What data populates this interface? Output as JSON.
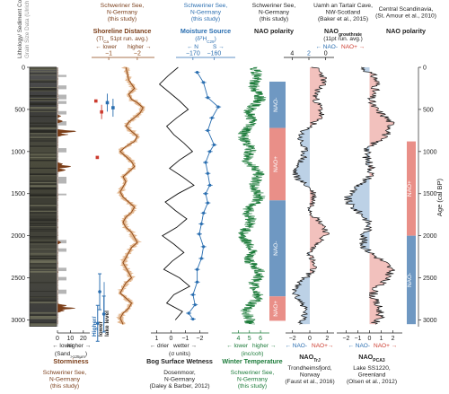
{
  "chart_data": {
    "type": "line",
    "y_axis": {
      "label": "Age (cal BP)",
      "ticks": [
        0,
        500,
        1000,
        1500,
        2000,
        2500,
        3000
      ],
      "lim": [
        0,
        3080
      ],
      "inverted": true
    },
    "panels": [
      {
        "id": "lithology",
        "header": "Lithology/ Sediment Color",
        "color": "#444444"
      },
      {
        "id": "grain_size",
        "header": "Grain Size Data (Ulrich et al., 2007)",
        "color": "#999999"
      },
      {
        "id": "storminess",
        "xlabel": "Storminess",
        "sublabel": "(Sand",
        "sub_index": ">125μm",
        "sub_suffix": ")",
        "dir_low": "← lower",
        "dir_high": "higher →",
        "xticks": [
          0,
          10,
          20
        ],
        "color": "#7a3d18",
        "x_range": [
          0,
          25
        ],
        "peaks": [
          [
            580,
            3
          ],
          [
            640,
            5
          ],
          [
            760,
            20
          ],
          [
            800,
            9
          ],
          [
            1150,
            6
          ],
          [
            1180,
            14
          ],
          [
            1220,
            8
          ],
          [
            2080,
            4
          ],
          [
            2830,
            9
          ],
          [
            2860,
            16
          ],
          [
            2890,
            7
          ]
        ],
        "credit": [
          "Schweriner See,",
          "N-Germany",
          "(this study)"
        ],
        "credit_color": "#7a3d18"
      },
      {
        "id": "lake_level",
        "xlabel": "lake level",
        "dir_low": "Higher/",
        "dir_high": "lower",
        "color": "#2a6eb0",
        "points": [
          [
            2665,
            0.35
          ],
          [
            2930,
            0.55
          ],
          [
            3040,
            0.25
          ]
        ]
      },
      {
        "id": "shoreline",
        "header": [
          "Schweriner See,",
          "N-Germany",
          "(this study)"
        ],
        "title": "Shoreline Distance",
        "subtitle": "(TI",
        "sub_index": "Ca",
        "sub_suffix": " 51pt run. avg.)",
        "dir_low": "← lower",
        "dir_high": "higher →",
        "xticks": [
          -1,
          -2
        ],
        "x_range": [
          -0.4,
          -2.6
        ],
        "color": "#8b4513",
        "series": {
          "age": [
            0,
            150,
            250,
            320,
            380,
            420,
            480,
            540,
            600,
            650,
            700,
            760,
            820,
            880,
            940,
            1000,
            1060,
            1120,
            1180,
            1240,
            1300,
            1360,
            1420,
            1480,
            1540,
            1600,
            1660,
            1720,
            1780,
            1840,
            1900,
            1960,
            2020,
            2080,
            2140,
            2200,
            2260,
            2320,
            2380,
            2440,
            2500,
            2560,
            2620,
            2680,
            2740,
            2800,
            2860,
            2920,
            2980,
            3050
          ],
          "value": [
            -1.6,
            -1.7,
            -1.9,
            -1.7,
            -1.8,
            -2.0,
            -2.2,
            -2.1,
            -1.9,
            -1.7,
            -1.6,
            -1.8,
            -2.0,
            -1.9,
            -1.6,
            -1.4,
            -1.6,
            -1.8,
            -1.9,
            -1.7,
            -1.5,
            -1.6,
            -1.5,
            -1.4,
            -1.5,
            -1.7,
            -1.9,
            -1.8,
            -1.6,
            -1.5,
            -1.6,
            -1.8,
            -1.9,
            -2.0,
            -1.8,
            -1.7,
            -1.6,
            -1.5,
            -1.6,
            -1.7,
            -1.8,
            -1.6,
            -1.5,
            -1.4,
            -1.6,
            -1.8,
            -1.7,
            -1.5,
            -1.4,
            -1.5
          ]
        }
      },
      {
        "id": "red_markers",
        "color": "#cc3b2e",
        "points": [
          [
            400,
            -0.55
          ],
          [
            530,
            -0.75
          ],
          [
            1070,
            -0.6
          ]
        ]
      },
      {
        "id": "blue_markers",
        "color": "#2a6eb0",
        "points": [
          [
            420,
            -0.95
          ],
          [
            480,
            -1.15
          ]
        ]
      },
      {
        "id": "bog",
        "xlabel": "Bog Surface Wetness",
        "sublabel": "(σ units)",
        "dir_low": "← drier",
        "dir_high": "wetter →",
        "xticks": [
          1,
          0,
          -1,
          -2
        ],
        "x_range": [
          1.4,
          -2.6
        ],
        "color": "#111111",
        "credit": [
          "Dosenmoor,",
          "N-Germany",
          "(Daley & Barber, 2012)"
        ],
        "series": {
          "age": [
            0,
            100,
            200,
            300,
            400,
            500,
            600,
            700,
            800,
            900,
            1000,
            1100,
            1200,
            1300,
            1400,
            1500,
            1600,
            1700,
            1800,
            1900,
            2000,
            2100,
            2200,
            2300,
            2400,
            2500,
            2600,
            2700,
            2800,
            2900,
            3000
          ],
          "value": [
            -0.5,
            0.2,
            0.8,
            0.1,
            -0.6,
            -1.2,
            -0.4,
            0.3,
            -0.2,
            -0.9,
            -1.5,
            -0.6,
            0.1,
            -0.8,
            -1.6,
            -0.5,
            0.4,
            -0.3,
            -1.1,
            -0.4,
            0.6,
            -0.2,
            -0.9,
            -0.1,
            0.5,
            -0.6,
            -1.3,
            -0.2,
            0.3,
            -0.8,
            -0.3
          ]
        }
      },
      {
        "id": "moisture",
        "header": [
          "Schweriner See,",
          "N-Germany",
          "(this study)"
        ],
        "title": "Moisture Source",
        "subtitle": "(δ",
        "sub_sup": "2",
        "sub_mid": "H",
        "sub_index": "C29",
        "sub_suffix": ")",
        "dir_low": "← N",
        "dir_high": "S →",
        "xticks": [
          -170,
          -160
        ],
        "x_range": [
          -178,
          -150
        ],
        "color": "#2a6eb0",
        "series": {
          "age": [
            60,
            180,
            360,
            470,
            600,
            750,
            920,
            1000,
            1130,
            1260,
            1400,
            1500,
            1610,
            1730,
            1860,
            1980,
            2130,
            2270,
            2400,
            2550,
            2700,
            2820,
            2920,
            2990
          ],
          "value": [
            -168,
            -165,
            -163,
            -158,
            -161,
            -163,
            -160,
            -162,
            -164,
            -163,
            -162,
            -164,
            -163,
            -165,
            -166,
            -167,
            -165,
            -166,
            -168,
            -168,
            -170,
            -169,
            -172,
            -170
          ]
        }
      },
      {
        "id": "winter_temp",
        "xlabel": "Winter Temperature",
        "sublabel": "(inc/coh)",
        "dir_low": "← lower",
        "dir_high": "higher →",
        "xticks": [
          4,
          5,
          6
        ],
        "x_range": [
          3.4,
          6.8
        ],
        "color": "#1a7a38",
        "credit": [
          "Schweriner See,",
          "N-Germany",
          "(this study)"
        ],
        "credit_color": "#1a7a38",
        "mean": 5.2
      },
      {
        "id": "nao_polarity_schwerin",
        "header": [
          "Schweriner See,",
          "N-Germany",
          "(this study)"
        ],
        "title": "NAO polarity",
        "bands": [
          {
            "from": 170,
            "to": 720,
            "label": "NAO-",
            "color": "#6f98c2"
          },
          {
            "from": 720,
            "to": 1580,
            "label": "NAO+",
            "color": "#e98f88"
          },
          {
            "from": 1580,
            "to": 2720,
            "label": "NAO-",
            "color": "#6f98c2"
          },
          {
            "from": 2720,
            "to": 3010,
            "label": "NAO+",
            "color": "#e98f88"
          }
        ]
      },
      {
        "id": "nao_tr",
        "title": "NAO",
        "title_index": "TrJ",
        "dir_neg": "← NAO-",
        "dir_pos": "NAO+→",
        "neg_color": "#2a6eb0",
        "pos_color": "#cc3b2e",
        "xticks": [
          -2,
          0,
          2
        ],
        "x_range": [
          -2.8,
          2.8
        ],
        "credit": [
          "Trondheimsfjord,",
          "Norway",
          "(Faust et al., 2016)"
        ]
      },
      {
        "id": "nao_growth",
        "header": [
          "Uamh an Tartair Cave,",
          "NW-Scotland",
          "(Baker et al., 2015)"
        ],
        "title": "NAO",
        "title_index": "growthrate",
        "subtitle": "(11pt run. avg.)",
        "dir_neg": "← NAO-",
        "dir_pos": "NAO+ →",
        "xticks": [
          4,
          2,
          0
        ],
        "x_range": [
          5.0,
          -1.0
        ],
        "tick_colors": [
          "#111111",
          "#2a6eb0",
          "#111111"
        ]
      },
      {
        "id": "nao_pca",
        "title": "NAO",
        "title_index": "PCA3",
        "dir_neg": "← NAO-",
        "dir_pos": "NAO+ →",
        "xticks": [
          -2,
          -1,
          0,
          1,
          2
        ],
        "x_range": [
          -2.8,
          2.8
        ],
        "credit": [
          "Lake SS1220,",
          "Greenland",
          "(Olsen et al., 2012)"
        ]
      },
      {
        "id": "nao_polarity_scand",
        "header": [
          "Central Scandinavia,",
          "(St. Amour et al., 2010)"
        ],
        "title": "NAO polarity",
        "bands": [
          {
            "from": 880,
            "to": 2000,
            "label": "NAO+",
            "color": "#e98f88"
          },
          {
            "from": 2000,
            "to": 3050,
            "label": "NAO-",
            "color": "#6f98c2"
          }
        ]
      }
    ]
  }
}
